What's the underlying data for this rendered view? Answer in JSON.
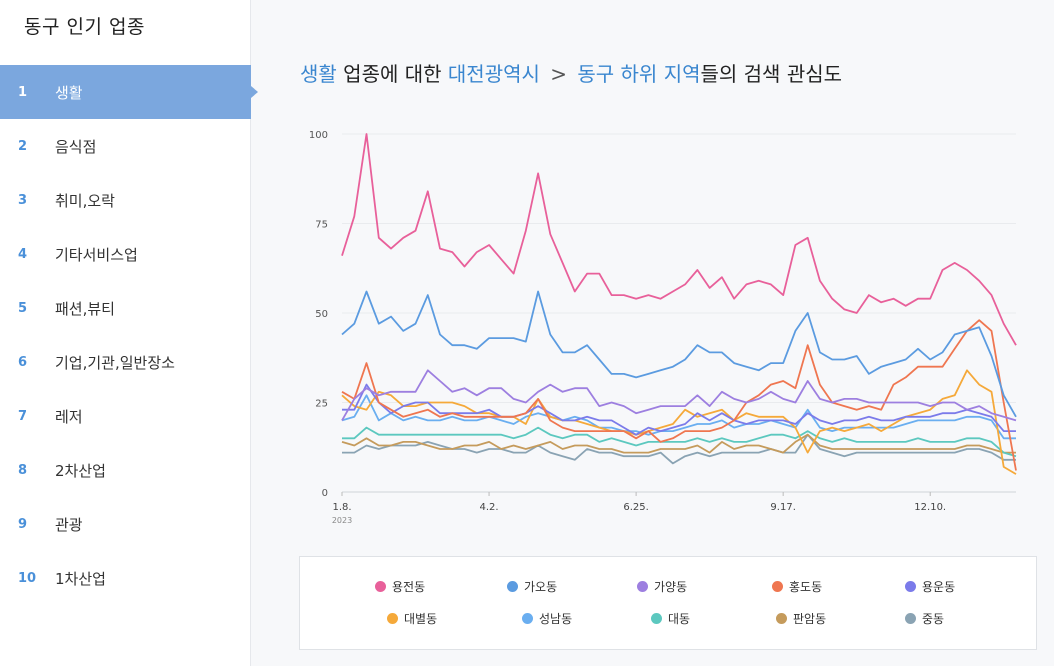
{
  "sidebar": {
    "title": "동구 인기 업종",
    "items": [
      {
        "num": "1",
        "label": "생활"
      },
      {
        "num": "2",
        "label": "음식점"
      },
      {
        "num": "3",
        "label": "취미,오락"
      },
      {
        "num": "4",
        "label": "기타서비스업"
      },
      {
        "num": "5",
        "label": "패션,뷰티"
      },
      {
        "num": "6",
        "label": "기업,기관,일반장소"
      },
      {
        "num": "7",
        "label": "레저"
      },
      {
        "num": "8",
        "label": "2차산업"
      },
      {
        "num": "9",
        "label": "관광"
      },
      {
        "num": "10",
        "label": "1차산업"
      }
    ]
  },
  "heading": {
    "category": "생활",
    "text1": "업종에 대한",
    "region": "대전광역시",
    "separator": ">",
    "subregion": "동구 하위 지역",
    "text2": "들의 검색 관심도"
  },
  "chart_data": {
    "type": "line",
    "ylim": [
      0,
      100
    ],
    "yticks": [
      0,
      25,
      50,
      75,
      100
    ],
    "xticks": [
      {
        "index": 0,
        "label": "1.8.",
        "sub": "2023"
      },
      {
        "index": 12,
        "label": "4.2."
      },
      {
        "index": 24,
        "label": "6.25."
      },
      {
        "index": 36,
        "label": "9.17."
      },
      {
        "index": 48,
        "label": "12.10."
      }
    ],
    "point_count": 56,
    "series": [
      {
        "name": "용전동",
        "color": "#e8609a",
        "values": [
          66,
          77,
          100,
          71,
          68,
          71,
          73,
          84,
          68,
          67,
          63,
          67,
          69,
          65,
          61,
          73,
          89,
          72,
          64,
          56,
          61,
          61,
          55,
          55,
          54,
          55,
          54,
          56,
          58,
          62,
          57,
          60,
          54,
          58,
          59,
          58,
          55,
          69,
          71,
          59,
          54,
          51,
          50,
          55,
          53,
          54,
          52,
          54,
          54,
          62,
          64,
          62,
          59,
          55,
          47,
          41
        ]
      },
      {
        "name": "가오동",
        "color": "#5b9be0",
        "values": [
          44,
          47,
          56,
          47,
          49,
          45,
          47,
          55,
          44,
          41,
          41,
          40,
          43,
          43,
          43,
          42,
          56,
          44,
          39,
          39,
          41,
          37,
          33,
          33,
          32,
          33,
          34,
          35,
          37,
          41,
          39,
          39,
          36,
          35,
          34,
          36,
          36,
          45,
          50,
          39,
          37,
          37,
          38,
          33,
          35,
          36,
          37,
          40,
          37,
          39,
          44,
          45,
          46,
          38,
          27,
          21
        ]
      },
      {
        "name": "가양동",
        "color": "#9d7fe0",
        "values": [
          20,
          26,
          29,
          27,
          28,
          28,
          28,
          34,
          31,
          28,
          29,
          27,
          29,
          29,
          26,
          25,
          28,
          30,
          28,
          29,
          29,
          24,
          25,
          24,
          22,
          23,
          24,
          24,
          24,
          27,
          24,
          28,
          26,
          25,
          26,
          28,
          26,
          25,
          31,
          26,
          25,
          26,
          26,
          25,
          25,
          25,
          25,
          25,
          24,
          25,
          25,
          23,
          24,
          22,
          21,
          20
        ]
      },
      {
        "name": "홍도동",
        "color": "#ef7650",
        "values": [
          28,
          26,
          36,
          25,
          23,
          21,
          22,
          23,
          21,
          22,
          21,
          21,
          21,
          21,
          21,
          22,
          26,
          20,
          18,
          17,
          17,
          17,
          17,
          17,
          15,
          17,
          14,
          15,
          17,
          17,
          17,
          18,
          20,
          25,
          27,
          30,
          31,
          29,
          41,
          30,
          25,
          24,
          23,
          24,
          23,
          30,
          32,
          35,
          35,
          35,
          40,
          45,
          48,
          45,
          25,
          6
        ]
      },
      {
        "name": "용운동",
        "color": "#7b7bea",
        "values": [
          23,
          23,
          30,
          25,
          22,
          24,
          25,
          25,
          22,
          22,
          22,
          22,
          23,
          21,
          21,
          22,
          24,
          22,
          20,
          20,
          21,
          20,
          20,
          18,
          16,
          18,
          17,
          18,
          19,
          22,
          20,
          22,
          20,
          19,
          20,
          20,
          20,
          19,
          22,
          20,
          19,
          20,
          20,
          21,
          20,
          20,
          21,
          21,
          21,
          22,
          22,
          23,
          22,
          21,
          17,
          17
        ]
      },
      {
        "name": "대별동",
        "color": "#f5a93a",
        "values": [
          27,
          24,
          23,
          28,
          27,
          24,
          24,
          25,
          25,
          25,
          24,
          22,
          22,
          21,
          21,
          19,
          26,
          21,
          20,
          20,
          19,
          18,
          17,
          17,
          16,
          17,
          18,
          19,
          23,
          21,
          22,
          23,
          20,
          22,
          21,
          21,
          21,
          18,
          11,
          17,
          18,
          17,
          18,
          19,
          17,
          19,
          21,
          22,
          23,
          26,
          27,
          34,
          30,
          28,
          7,
          5
        ]
      },
      {
        "name": "성남동",
        "color": "#6aaef0",
        "values": [
          20,
          21,
          27,
          20,
          22,
          20,
          21,
          20,
          20,
          21,
          20,
          20,
          21,
          20,
          19,
          21,
          22,
          21,
          20,
          21,
          20,
          18,
          18,
          17,
          17,
          16,
          17,
          17,
          18,
          19,
          19,
          20,
          18,
          19,
          19,
          20,
          19,
          18,
          23,
          18,
          17,
          18,
          18,
          18,
          18,
          18,
          19,
          20,
          20,
          20,
          20,
          21,
          21,
          20,
          15,
          15
        ]
      },
      {
        "name": "대동",
        "color": "#5cc8bf",
        "values": [
          15,
          15,
          18,
          16,
          16,
          16,
          16,
          16,
          16,
          16,
          16,
          16,
          16,
          16,
          15,
          16,
          18,
          16,
          15,
          16,
          16,
          14,
          15,
          14,
          13,
          14,
          14,
          14,
          14,
          15,
          14,
          15,
          14,
          14,
          15,
          16,
          16,
          15,
          17,
          15,
          14,
          15,
          14,
          14,
          14,
          14,
          14,
          15,
          14,
          14,
          14,
          15,
          15,
          14,
          11,
          10
        ]
      },
      {
        "name": "판암동",
        "color": "#c59b5c",
        "values": [
          14,
          13,
          15,
          13,
          13,
          14,
          14,
          13,
          12,
          12,
          13,
          13,
          14,
          12,
          13,
          12,
          13,
          14,
          12,
          13,
          13,
          12,
          12,
          11,
          11,
          11,
          12,
          12,
          12,
          13,
          11,
          14,
          12,
          13,
          13,
          12,
          11,
          14,
          16,
          13,
          12,
          12,
          12,
          12,
          12,
          12,
          12,
          12,
          12,
          12,
          12,
          13,
          13,
          12,
          11,
          11
        ]
      },
      {
        "name": "중동",
        "color": "#8aa3b3",
        "values": [
          11,
          11,
          13,
          12,
          13,
          13,
          13,
          14,
          13,
          12,
          12,
          11,
          12,
          12,
          11,
          11,
          13,
          11,
          10,
          9,
          12,
          11,
          11,
          10,
          10,
          10,
          11,
          8,
          10,
          11,
          10,
          11,
          11,
          11,
          11,
          12,
          11,
          11,
          16,
          12,
          11,
          10,
          11,
          11,
          11,
          11,
          11,
          11,
          11,
          11,
          11,
          12,
          12,
          11,
          9,
          9
        ]
      }
    ]
  }
}
